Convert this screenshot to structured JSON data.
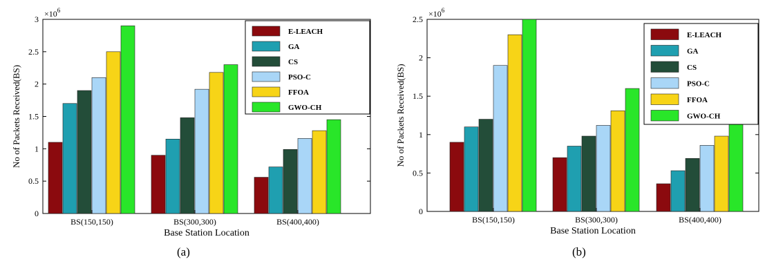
{
  "captions": [
    "(a)",
    "(b)"
  ],
  "legend_colors": {
    "E-LEACH": "#8b0a0e",
    "GA": "#1f9fb0",
    "CS": "#234d39",
    "PSO-C": "#a9d6f7",
    "FFOA": "#f7d417",
    "GWO-CH": "#29e629"
  },
  "chart_data": [
    {
      "type": "bar",
      "categories": [
        "BS(150,150)",
        "BS(300,300)",
        "BS(400,400)"
      ],
      "series": [
        {
          "name": "E-LEACH",
          "values": [
            1.1,
            0.9,
            0.56
          ]
        },
        {
          "name": "GA",
          "values": [
            1.7,
            1.15,
            0.72
          ]
        },
        {
          "name": "CS",
          "values": [
            1.9,
            1.48,
            0.99
          ]
        },
        {
          "name": "PSO-C",
          "values": [
            2.1,
            1.92,
            1.16
          ]
        },
        {
          "name": "FFOA",
          "values": [
            2.5,
            2.18,
            1.28
          ]
        },
        {
          "name": "GWO-CH",
          "values": [
            2.9,
            2.3,
            1.45
          ]
        }
      ],
      "xlabel": "Base Station Location",
      "ylabel": "No of Packets Received(BS)",
      "exponent_label": "×10",
      "exponent_power": "6",
      "ylim": [
        0,
        3
      ],
      "yticks": [
        "0",
        "0.5",
        "1",
        "1.5",
        "2",
        "2.5",
        "3"
      ],
      "ytick_values": [
        0,
        0.5,
        1,
        1.5,
        2,
        2.5,
        3
      ],
      "legend_position": "top-right",
      "grid": false
    },
    {
      "type": "bar",
      "categories": [
        "BS(150,150)",
        "BS(300,300)",
        "BS(400,400)"
      ],
      "series": [
        {
          "name": "E-LEACH",
          "values": [
            0.9,
            0.7,
            0.36
          ]
        },
        {
          "name": "GA",
          "values": [
            1.1,
            0.85,
            0.53
          ]
        },
        {
          "name": "CS",
          "values": [
            1.2,
            0.98,
            0.69
          ]
        },
        {
          "name": "PSO-C",
          "values": [
            1.9,
            1.12,
            0.86
          ]
        },
        {
          "name": "FFOA",
          "values": [
            2.3,
            1.31,
            0.98
          ]
        },
        {
          "name": "GWO-CH",
          "values": [
            2.5,
            1.6,
            1.25
          ]
        }
      ],
      "xlabel": "Base Station Location",
      "ylabel": "No of Packets Received(BS)",
      "exponent_label": "×10",
      "exponent_power": "6",
      "ylim": [
        0,
        2.5
      ],
      "yticks": [
        "0",
        "0.5",
        "1",
        "1.5",
        "2",
        "2.5"
      ],
      "ytick_values": [
        0,
        0.5,
        1,
        1.5,
        2,
        2.5
      ],
      "legend_position": "top-right",
      "grid": false
    }
  ]
}
